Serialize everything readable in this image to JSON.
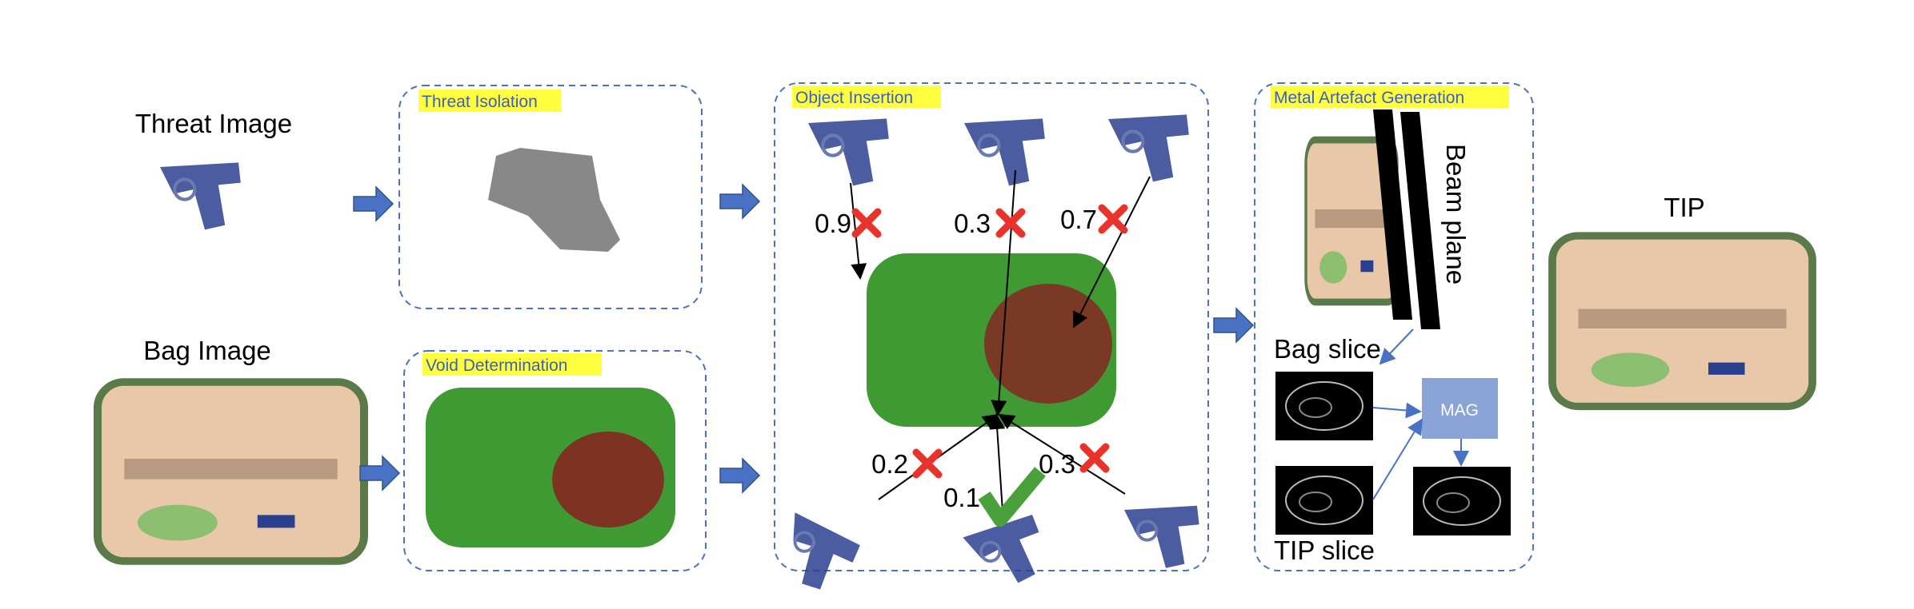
{
  "labels": {
    "threat_image": "Threat Image",
    "bag_image": "Bag Image",
    "tip": "TIP"
  },
  "panels": [
    {
      "title": "Threat Isolation"
    },
    {
      "title": "Void Determination"
    },
    {
      "title": "Object Insertion"
    },
    {
      "title": "Metal Artefact Generation"
    }
  ],
  "insertion_scores": [
    "0.9",
    "0.3",
    "0.7",
    "0.2",
    "0.1",
    "0.3"
  ],
  "mag": {
    "beam_plane": "Beam plane",
    "bag_slice": "Bag slice",
    "tip_slice": "TIP slice",
    "box": "MAG"
  }
}
